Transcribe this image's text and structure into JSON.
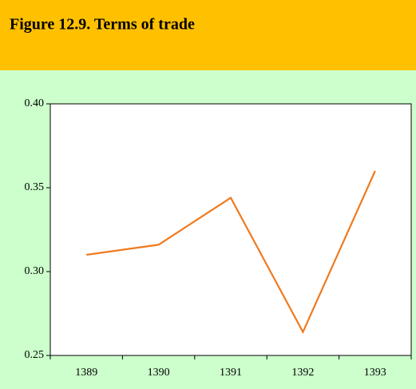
{
  "chart_data": {
    "type": "line",
    "title": "Figure 12.9. Terms of trade",
    "categories": [
      "1389",
      "1390",
      "1391",
      "1392",
      "1393"
    ],
    "values": [
      0.31,
      0.316,
      0.344,
      0.264,
      0.36
    ],
    "color": "#f07a1e",
    "ylim": [
      0.25,
      0.4
    ],
    "yticks": [
      {
        "value": 0.25,
        "label": "0.25"
      },
      {
        "value": 0.3,
        "label": "0.30"
      },
      {
        "value": 0.35,
        "label": "0.35"
      },
      {
        "value": 0.4,
        "label": "0.40"
      }
    ],
    "grid": false
  }
}
